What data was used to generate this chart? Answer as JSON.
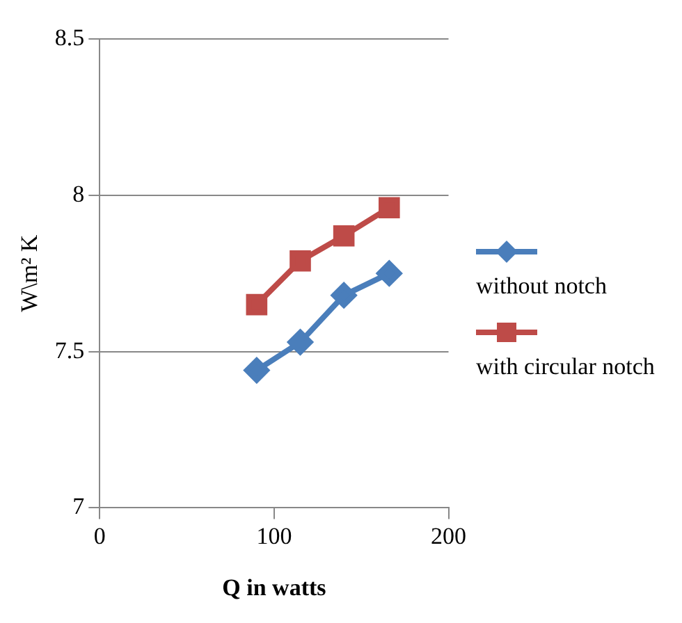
{
  "chart_data": {
    "type": "line",
    "xlabel": "Q in watts",
    "ylabel": "W\\m² K",
    "xlim": [
      0,
      200
    ],
    "xticks": [
      0,
      100,
      200
    ],
    "ylim": [
      7,
      8.5
    ],
    "yticks": [
      7,
      7.5,
      8,
      8.5
    ],
    "grid": "y",
    "legend": "right",
    "series": [
      {
        "name": "without notch",
        "color": "#4a7ebb",
        "marker": "diamond",
        "x": [
          90,
          115,
          140,
          166
        ],
        "values": [
          7.44,
          7.53,
          7.68,
          7.75
        ]
      },
      {
        "name": "with circular notch",
        "color": "#be4b48",
        "marker": "square",
        "x": [
          90,
          115,
          140,
          166
        ],
        "values": [
          7.65,
          7.79,
          7.87,
          7.96
        ]
      }
    ]
  }
}
